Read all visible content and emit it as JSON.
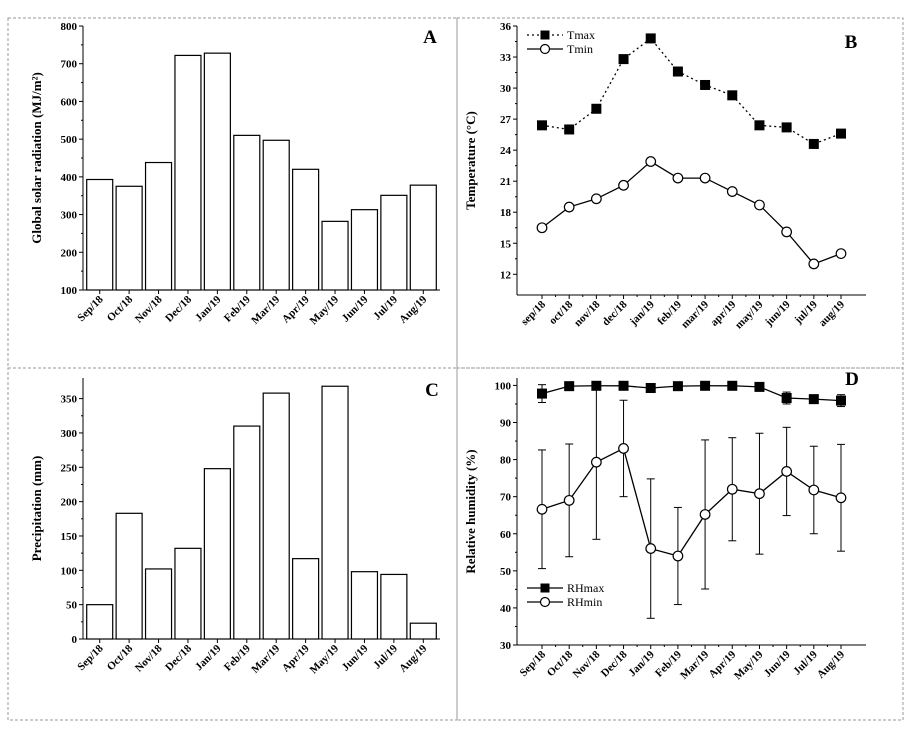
{
  "chart_data": [
    {
      "id": "A",
      "type": "bar",
      "panel_label": "A",
      "ylabel": "Global solar radiation (MJ/m²)",
      "categories": [
        "Sep/18",
        "Oct/18",
        "Nov/18",
        "Dec/18",
        "Jan/19",
        "Feb/19",
        "Mar/19",
        "Apr/19",
        "May/19",
        "Jun/19",
        "Jul/19",
        "Aug/19"
      ],
      "values": [
        393,
        375,
        438,
        722,
        728,
        510,
        497,
        420,
        282,
        313,
        351,
        378
      ],
      "ylim": [
        100,
        800
      ],
      "yticks": [
        100,
        200,
        300,
        400,
        500,
        600,
        700,
        800
      ],
      "grid": false
    },
    {
      "id": "B",
      "type": "line",
      "panel_label": "B",
      "ylabel": "Temperature (°C)",
      "categories": [
        "sep/18",
        "oct/18",
        "nov/18",
        "dec/18",
        "jan/19",
        "feb/19",
        "mar/19",
        "apr/19",
        "may/19",
        "jun/19",
        "jul/19",
        "aug/19"
      ],
      "series": [
        {
          "name": "Tmax",
          "marker": "filled-square",
          "line": "dotted",
          "values": [
            26.4,
            26.0,
            28.0,
            32.8,
            34.8,
            31.6,
            30.3,
            29.3,
            26.4,
            26.2,
            24.6,
            25.6
          ]
        },
        {
          "name": "Tmin",
          "marker": "open-circle",
          "line": "solid",
          "values": [
            16.5,
            18.5,
            19.3,
            20.6,
            22.9,
            21.3,
            21.3,
            20.0,
            18.7,
            16.1,
            13.0,
            14.0
          ]
        }
      ],
      "ylim": [
        10,
        36
      ],
      "yticks": [
        12,
        15,
        18,
        21,
        24,
        27,
        30,
        33,
        36
      ],
      "legend": "top-left",
      "grid": false
    },
    {
      "id": "C",
      "type": "bar",
      "panel_label": "C",
      "ylabel": "Precipitation (mm)",
      "categories": [
        "Sep/18",
        "Oct/18",
        "Nov/18",
        "Dec/18",
        "Jan/19",
        "Feb/19",
        "Mar/19",
        "Apr/19",
        "May/19",
        "Jun/19",
        "Jul/19",
        "Aug/19"
      ],
      "values": [
        50,
        183,
        102,
        132,
        248,
        310,
        358,
        117,
        368,
        98,
        94,
        23
      ],
      "ylim": [
        0,
        380
      ],
      "yticks": [
        0,
        50,
        100,
        150,
        200,
        250,
        300,
        350
      ],
      "grid": false
    },
    {
      "id": "D",
      "type": "line",
      "panel_label": "D",
      "ylabel": "Relative humidity (%)",
      "categories": [
        "Sep/18",
        "Oct/18",
        "Nov/18",
        "Dec/18",
        "Jan/19",
        "Feb/19",
        "Mar/19",
        "Apr/19",
        "May/19",
        "Jun/19",
        "Jul/19",
        "Aug/19"
      ],
      "series": [
        {
          "name": "RHmax",
          "marker": "filled-square",
          "line": "solid",
          "values": [
            97.8,
            99.8,
            99.9,
            99.9,
            99.3,
            99.8,
            99.9,
            99.9,
            99.6,
            96.6,
            96.3,
            95.9
          ],
          "error": [
            2.4,
            0.5,
            0.5,
            0.5,
            0.8,
            0.5,
            0.5,
            0.5,
            0.7,
            1.6,
            1.0,
            1.6
          ]
        },
        {
          "name": "RHmin",
          "marker": "open-circle",
          "line": "solid",
          "values": [
            66.6,
            69.0,
            79.3,
            83.0,
            56.0,
            54.0,
            65.2,
            72.0,
            70.8,
            76.8,
            71.8,
            69.7
          ],
          "error": [
            16.0,
            15.2,
            20.8,
            13.0,
            18.8,
            13.1,
            20.1,
            13.9,
            16.3,
            11.9,
            11.8,
            14.4
          ]
        }
      ],
      "ylim": [
        30,
        102
      ],
      "yticks": [
        30,
        40,
        50,
        60,
        70,
        80,
        90,
        100
      ],
      "legend": "bottom-left",
      "grid": false
    }
  ]
}
